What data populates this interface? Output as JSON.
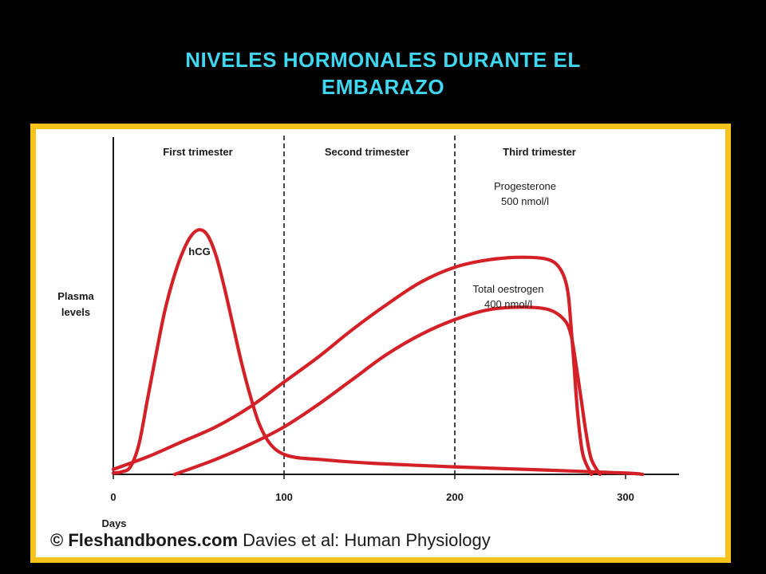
{
  "slide": {
    "title_line1": "NIVELES HORMONALES DURANTE EL",
    "title_line2": "EMBARAZO"
  },
  "colors": {
    "background": "#000000",
    "title": "#3fd6f0",
    "frame": "#f7c21a",
    "curve": "#d42027",
    "ink": "#1a1a1a"
  },
  "chart_data": {
    "type": "line",
    "ylabel": [
      "Plasma",
      "levels"
    ],
    "xlabel": "Days",
    "xlim": [
      0,
      330
    ],
    "ylim": [
      0,
      1
    ],
    "xticks": [
      0,
      100,
      200,
      300
    ],
    "trimesters": [
      {
        "label": "First trimester",
        "start": 0,
        "end": 100
      },
      {
        "label": "Second trimester",
        "start": 100,
        "end": 200
      },
      {
        "label": "Third trimester",
        "start": 200,
        "end": 330
      }
    ],
    "divider_days": [
      100,
      200
    ],
    "series": [
      {
        "name": "hCG",
        "x": [
          0,
          5,
          10,
          15,
          20,
          25,
          30,
          35,
          40,
          45,
          50,
          55,
          60,
          65,
          70,
          75,
          80,
          85,
          90,
          95,
          100,
          105,
          110,
          120,
          150,
          200,
          250,
          300,
          310
        ],
        "y": [
          0.005,
          0.01,
          0.03,
          0.12,
          0.3,
          0.48,
          0.65,
          0.78,
          0.88,
          0.95,
          0.98,
          0.96,
          0.88,
          0.75,
          0.6,
          0.45,
          0.32,
          0.21,
          0.14,
          0.1,
          0.08,
          0.07,
          0.065,
          0.06,
          0.045,
          0.03,
          0.018,
          0.005,
          0.0
        ]
      },
      {
        "name": "Progesterone",
        "annotation": [
          "Progesterone",
          "500 nmol/l"
        ],
        "x": [
          0,
          20,
          40,
          60,
          80,
          100,
          120,
          140,
          160,
          180,
          200,
          220,
          240,
          255,
          262,
          266,
          268,
          270,
          272,
          275,
          280
        ],
        "y": [
          0.02,
          0.07,
          0.13,
          0.19,
          0.27,
          0.37,
          0.47,
          0.58,
          0.68,
          0.77,
          0.83,
          0.86,
          0.87,
          0.86,
          0.82,
          0.74,
          0.6,
          0.42,
          0.24,
          0.08,
          0.0
        ]
      },
      {
        "name": "Total oestrogen",
        "annotation": [
          "Total oestrogen",
          "400 nmol/l"
        ],
        "x": [
          36,
          60,
          80,
          100,
          120,
          140,
          160,
          180,
          200,
          220,
          240,
          255,
          264,
          268,
          271,
          274,
          277,
          280,
          285
        ],
        "y": [
          0.0,
          0.06,
          0.12,
          0.19,
          0.28,
          0.38,
          0.48,
          0.56,
          0.62,
          0.66,
          0.67,
          0.66,
          0.62,
          0.56,
          0.44,
          0.3,
          0.16,
          0.06,
          0.0
        ]
      }
    ]
  },
  "credit": {
    "symbol": "©",
    "site": "Fleshandbones.com",
    "text": "Davies et al: Human Physiology"
  }
}
